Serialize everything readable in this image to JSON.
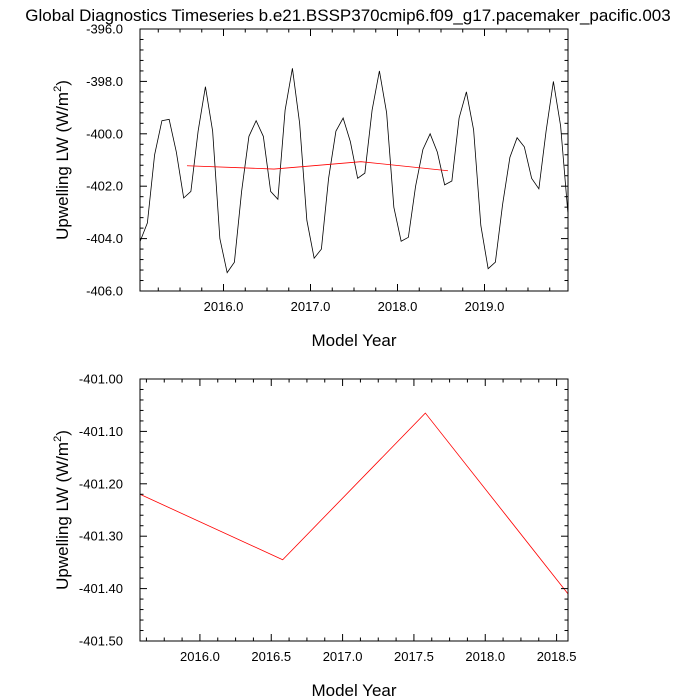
{
  "figure": {
    "title": "Global Diagnostics Timeseries b.e21.BSSP370cmip6.f09_g17.pacemaker_pacific.003"
  },
  "chart_data": [
    {
      "type": "line",
      "title": "",
      "xlabel": "Model Year",
      "ylabel": "Upwelling LW (W/m",
      "ylabel_sup": "2",
      "ylabel_close": ")",
      "xlim": [
        2015.04,
        2019.96
      ],
      "ylim": [
        -406.0,
        -396.0
      ],
      "xticks": [
        2016.0,
        2017.0,
        2018.0,
        2019.0
      ],
      "xtick_labels": [
        "2016.0",
        "2017.0",
        "2018.0",
        "2019.0"
      ],
      "yticks": [
        -406.0,
        -404.0,
        -402.0,
        -400.0,
        -398.0,
        -396.0
      ],
      "ytick_labels": [
        "-406.0",
        "-404.0",
        "-402.0",
        "-400.0",
        "-398.0",
        "-396.0"
      ],
      "grid": false,
      "series": [
        {
          "color": "#000000",
          "x": [
            2015.042,
            2015.125,
            2015.208,
            2015.292,
            2015.375,
            2015.458,
            2015.542,
            2015.625,
            2015.708,
            2015.792,
            2015.875,
            2015.958,
            2016.042,
            2016.125,
            2016.208,
            2016.292,
            2016.375,
            2016.458,
            2016.542,
            2016.625,
            2016.708,
            2016.792,
            2016.875,
            2016.958,
            2017.042,
            2017.125,
            2017.208,
            2017.292,
            2017.375,
            2017.458,
            2017.542,
            2017.625,
            2017.708,
            2017.792,
            2017.875,
            2017.958,
            2018.042,
            2018.125,
            2018.208,
            2018.292,
            2018.375,
            2018.458,
            2018.542,
            2018.625,
            2018.708,
            2018.792,
            2018.875,
            2018.958,
            2019.042,
            2019.125,
            2019.208,
            2019.292,
            2019.375,
            2019.458,
            2019.542,
            2019.625,
            2019.708,
            2019.792,
            2019.875,
            2019.958
          ],
          "values": [
            -404.1,
            -403.4,
            -400.8,
            -399.5,
            -399.45,
            -400.7,
            -402.45,
            -402.2,
            -399.9,
            -398.2,
            -399.9,
            -404.0,
            -405.3,
            -404.9,
            -402.2,
            -400.1,
            -399.5,
            -400.1,
            -402.2,
            -402.5,
            -399.1,
            -397.5,
            -399.6,
            -403.3,
            -404.75,
            -404.4,
            -401.7,
            -399.9,
            -399.4,
            -400.3,
            -401.7,
            -401.5,
            -399.1,
            -397.6,
            -399.2,
            -402.8,
            -404.1,
            -403.95,
            -402.0,
            -400.6,
            -400.0,
            -400.7,
            -401.95,
            -401.8,
            -399.4,
            -398.4,
            -399.85,
            -403.5,
            -405.15,
            -404.9,
            -402.7,
            -400.9,
            -400.15,
            -400.5,
            -401.7,
            -402.1,
            -399.9,
            -398.0,
            -399.7,
            -403.0
          ]
        },
        {
          "color": "#ff0000",
          "x": [
            2015.58,
            2016.58,
            2017.58,
            2018.58
          ],
          "values": [
            -401.22,
            -401.345,
            -401.065,
            -401.41
          ]
        }
      ]
    },
    {
      "type": "line",
      "title": "",
      "xlabel": "Model Year",
      "ylabel": "Upwelling LW (W/m",
      "ylabel_sup": "2",
      "ylabel_close": ")",
      "xlim": [
        2015.58,
        2018.58
      ],
      "ylim": [
        -401.5,
        -401.0
      ],
      "xticks": [
        2016.0,
        2016.5,
        2017.0,
        2017.5,
        2018.0,
        2018.5
      ],
      "xtick_labels": [
        "2016.0",
        "2016.5",
        "2017.0",
        "2017.5",
        "2018.0",
        "2018.5"
      ],
      "yticks": [
        -401.5,
        -401.4,
        -401.3,
        -401.2,
        -401.1,
        -401.0
      ],
      "ytick_labels": [
        "-401.50",
        "-401.40",
        "-401.30",
        "-401.20",
        "-401.10",
        "-401.00"
      ],
      "grid": false,
      "series": [
        {
          "color": "#ff0000",
          "x": [
            2015.58,
            2016.58,
            2017.58,
            2018.58
          ],
          "values": [
            -401.22,
            -401.345,
            -401.065,
            -401.41
          ]
        }
      ]
    }
  ]
}
